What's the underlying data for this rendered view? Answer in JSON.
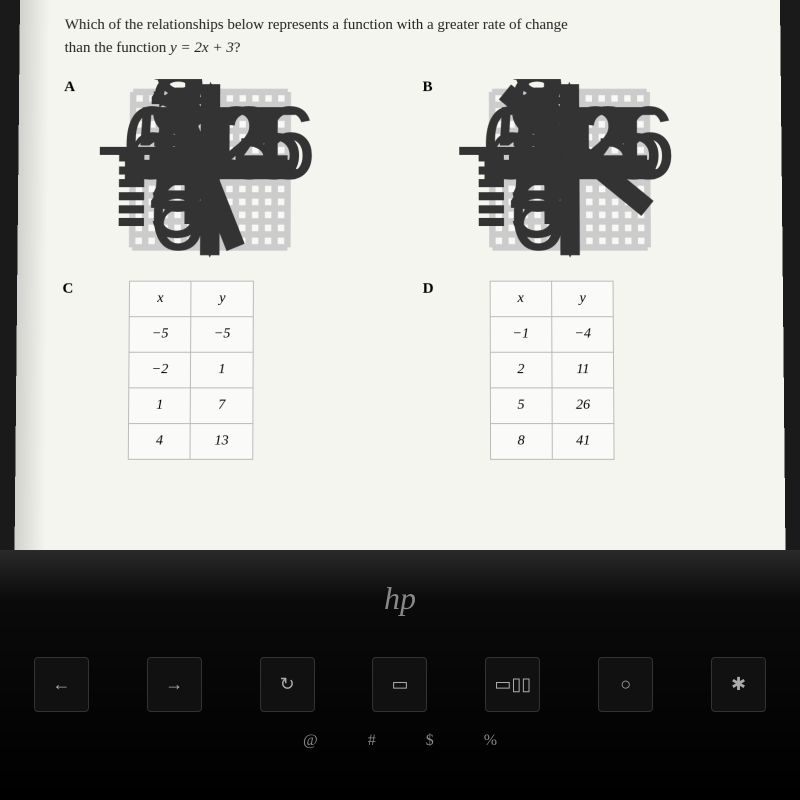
{
  "question": {
    "line1": "Which of the relationships below represents a function with a greater rate of change",
    "line2_prefix": "than the function ",
    "line2_eq": "y = 2x + 3",
    "line2_suffix": "?"
  },
  "labels": {
    "a": "A",
    "b": "B",
    "c": "C",
    "d": "D"
  },
  "grid": {
    "xmin": -6,
    "xmax": 6,
    "ymin": -6,
    "ymax": 6,
    "xticks": [
      -6,
      -5,
      -4,
      -3,
      -2,
      -1,
      1,
      2,
      3,
      4,
      5,
      6
    ],
    "yticks": [
      -6,
      -5,
      -4,
      -3,
      -2,
      -1,
      1,
      2,
      3,
      4,
      5,
      6
    ],
    "grid_color": "#cccccc",
    "axis_color": "#333333",
    "bg_color": "#f8f8f4",
    "line_color": "#222222"
  },
  "graph_a": {
    "type": "line",
    "line": {
      "x1": -2.8,
      "y1": 6,
      "x2": 2,
      "y2": -6
    }
  },
  "graph_b": {
    "type": "line",
    "line": {
      "x1": -5,
      "y1": 6,
      "x2": 6,
      "y2": -3
    }
  },
  "table_c": {
    "type": "table",
    "headers": [
      "x",
      "y"
    ],
    "rows": [
      [
        "−5",
        "−5"
      ],
      [
        "−2",
        "1"
      ],
      [
        "1",
        "7"
      ],
      [
        "4",
        "13"
      ]
    ]
  },
  "table_d": {
    "type": "table",
    "headers": [
      "x",
      "y"
    ],
    "rows": [
      [
        "−1",
        "−4"
      ],
      [
        "2",
        "11"
      ],
      [
        "5",
        "26"
      ],
      [
        "8",
        "41"
      ]
    ]
  },
  "laptop": {
    "logo": "hp",
    "row1": [
      "←",
      "→",
      "↻",
      "▭",
      "▭▯▯",
      "○",
      "✱"
    ],
    "row2": [
      "@",
      "#",
      "$",
      "%"
    ]
  }
}
